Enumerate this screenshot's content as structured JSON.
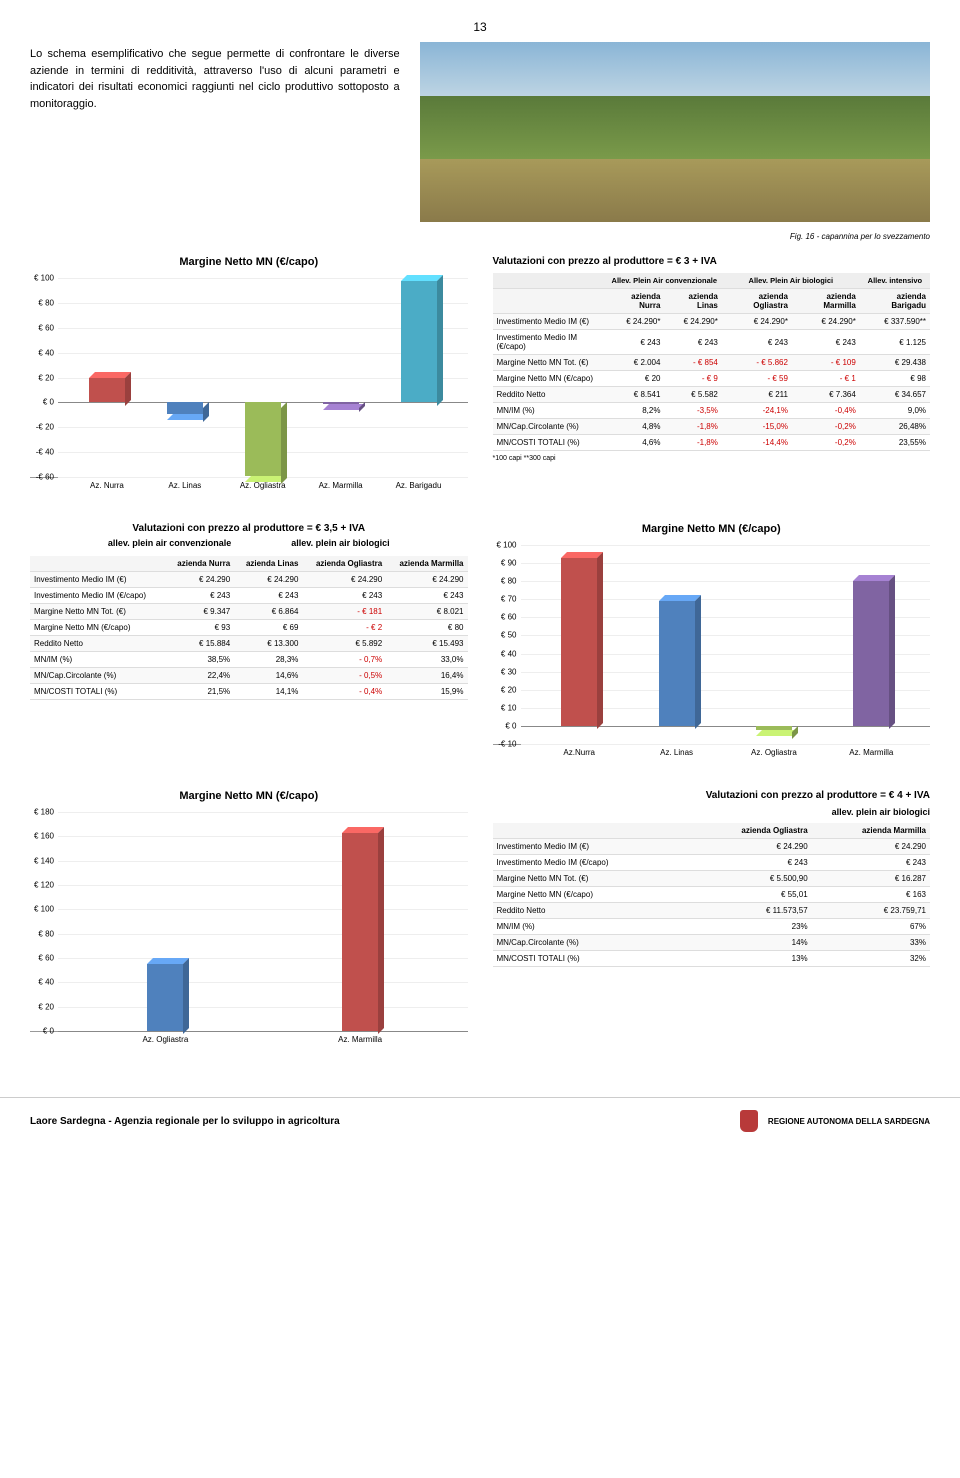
{
  "page_number": "13",
  "intro_paragraph": "Lo schema esemplificativo che segue permette di confrontare le diverse aziende in termini di redditività, attraverso l'uso di alcuni parametri e indicatori dei risultati economici raggiunti nel ciclo produttivo sottoposto a monitoraggio.",
  "figure_caption": "Fig. 16 - capannina per lo svezzamento",
  "chart1": {
    "title": "Margine Netto MN (€/capo)",
    "ymin": -60,
    "ymax": 100,
    "ystep": 20,
    "bars": [
      {
        "label": "Az. Nurra",
        "value": 20,
        "color": "#c0504d"
      },
      {
        "label": "Az. Linas",
        "value": -9,
        "color": "#4f81bd"
      },
      {
        "label": "Az. Ogliastra",
        "value": -59,
        "color": "#9bbb59"
      },
      {
        "label": "Az. Marmilla",
        "value": -1,
        "color": "#8064a2"
      },
      {
        "label": "Az. Barigadu",
        "value": 98,
        "color": "#4bacc6"
      }
    ]
  },
  "table1": {
    "title": "Valutazioni con prezzo al produttore = € 3 + IVA",
    "super_heads": [
      "",
      "Allev. Plein Air convenzionale",
      "Allev. Plein Air biologici",
      "Allev. intensivo"
    ],
    "super_spans": [
      1,
      2,
      2,
      1
    ],
    "cols": [
      "",
      "azienda Nurra",
      "azienda Linas",
      "azienda Ogliastra",
      "azienda Marmilla",
      "azienda Barigadu"
    ],
    "rows": [
      [
        "Investimento Medio IM (€)",
        "€ 24.290*",
        "€ 24.290*",
        "€ 24.290*",
        "€ 24.290*",
        "€ 337.590**"
      ],
      [
        "Investimento Medio IM (€/capo)",
        "€ 243",
        "€ 243",
        "€ 243",
        "€ 243",
        "€ 1.125"
      ],
      [
        "Margine Netto MN Tot. (€)",
        "€ 2.004",
        "- € 854",
        "- € 5.862",
        "- € 109",
        "€ 29.438"
      ],
      [
        "Margine Netto MN (€/capo)",
        "€ 20",
        "- € 9",
        "- € 59",
        "- € 1",
        "€ 98"
      ],
      [
        "Reddito Netto",
        "€ 8.541",
        "€ 5.582",
        "€ 211",
        "€ 7.364",
        "€ 34.657"
      ],
      [
        "MN/IM (%)",
        "8,2%",
        "-3,5%",
        "-24,1%",
        "-0,4%",
        "9,0%"
      ],
      [
        "MN/Cap.Circolante (%)",
        "4,8%",
        "-1,8%",
        "-15,0%",
        "-0,2%",
        "26,48%"
      ],
      [
        "MN/COSTI TOTALI (%)",
        "4,6%",
        "-1,8%",
        "-14,4%",
        "-0,2%",
        "23,55%"
      ]
    ],
    "neg_cells": [
      [
        2,
        2
      ],
      [
        2,
        3
      ],
      [
        2,
        4
      ],
      [
        3,
        2
      ],
      [
        3,
        3
      ],
      [
        3,
        4
      ],
      [
        5,
        2
      ],
      [
        5,
        3
      ],
      [
        5,
        4
      ],
      [
        6,
        2
      ],
      [
        6,
        3
      ],
      [
        6,
        4
      ],
      [
        7,
        2
      ],
      [
        7,
        3
      ],
      [
        7,
        4
      ]
    ],
    "footnote": "*100 capi **300 capi"
  },
  "table2": {
    "title": "Valutazioni con prezzo al produttore = € 3,5 + IVA",
    "sub_heads": [
      "allev. plein air convenzionale",
      "allev. plein air biologici"
    ],
    "cols": [
      "",
      "azienda Nurra",
      "azienda Linas",
      "azienda Ogliastra",
      "azienda Marmilla"
    ],
    "rows": [
      [
        "Investimento Medio IM (€)",
        "€ 24.290",
        "€ 24.290",
        "€ 24.290",
        "€ 24.290"
      ],
      [
        "Investimento Medio IM (€/capo)",
        "€ 243",
        "€ 243",
        "€ 243",
        "€ 243"
      ],
      [
        "Margine Netto MN Tot. (€)",
        "€ 9.347",
        "€ 6.864",
        "- € 181",
        "€ 8.021"
      ],
      [
        "Margine Netto MN (€/capo)",
        "€ 93",
        "€ 69",
        "- € 2",
        "€ 80"
      ],
      [
        "Reddito Netto",
        "€ 15.884",
        "€ 13.300",
        "€ 5.892",
        "€ 15.493"
      ],
      [
        "MN/IM (%)",
        "38,5%",
        "28,3%",
        "- 0,7%",
        "33,0%"
      ],
      [
        "MN/Cap.Circolante (%)",
        "22,4%",
        "14,6%",
        "- 0,5%",
        "16,4%"
      ],
      [
        "MN/COSTI TOTALI (%)",
        "21,5%",
        "14,1%",
        "- 0,4%",
        "15,9%"
      ]
    ],
    "neg_cells": [
      [
        2,
        3
      ],
      [
        3,
        3
      ],
      [
        5,
        3
      ],
      [
        6,
        3
      ],
      [
        7,
        3
      ]
    ]
  },
  "chart2": {
    "title": "Margine Netto MN (€/capo)",
    "ymin": -10,
    "ymax": 100,
    "ystep": 10,
    "bars": [
      {
        "label": "Az.Nurra",
        "value": 93,
        "color": "#c0504d"
      },
      {
        "label": "Az. Linas",
        "value": 69,
        "color": "#4f81bd"
      },
      {
        "label": "Az. Ogliastra",
        "value": -2,
        "color": "#9bbb59"
      },
      {
        "label": "Az. Marmilla",
        "value": 80,
        "color": "#8064a2"
      }
    ]
  },
  "chart3": {
    "title": "Margine Netto MN (€/capo)",
    "ymin": 0,
    "ymax": 180,
    "ystep": 20,
    "bars": [
      {
        "label": "Az. Ogliastra",
        "value": 55,
        "color": "#4f81bd"
      },
      {
        "label": "Az. Marmilla",
        "value": 163,
        "color": "#c0504d"
      }
    ]
  },
  "table3": {
    "title": "Valutazioni con prezzo al produttore = € 4 + IVA",
    "sub_head": "allev. plein air biologici",
    "cols": [
      "",
      "azienda Ogliastra",
      "azienda Marmilla"
    ],
    "rows": [
      [
        "Investimento Medio IM (€)",
        "€ 24.290",
        "€ 24.290"
      ],
      [
        "Investimento Medio IM (€/capo)",
        "€ 243",
        "€ 243"
      ],
      [
        "Margine Netto MN Tot. (€)",
        "€ 5.500,90",
        "€ 16.287"
      ],
      [
        "Margine Netto MN (€/capo)",
        "€ 55,01",
        "€ 163"
      ],
      [
        "Reddito Netto",
        "€ 11.573,57",
        "€ 23.759,71"
      ],
      [
        "MN/IM (%)",
        "23%",
        "67%"
      ],
      [
        "MN/Cap.Circolante (%)",
        "14%",
        "33%"
      ],
      [
        "MN/COSTI TOTALI (%)",
        "13%",
        "32%"
      ]
    ],
    "neg_cells": []
  },
  "footer": {
    "left": "Laore Sardegna - Agenzia regionale per lo sviluppo in agricoltura",
    "right": "REGIONE AUTONOMA DELLA SARDEGNA"
  }
}
